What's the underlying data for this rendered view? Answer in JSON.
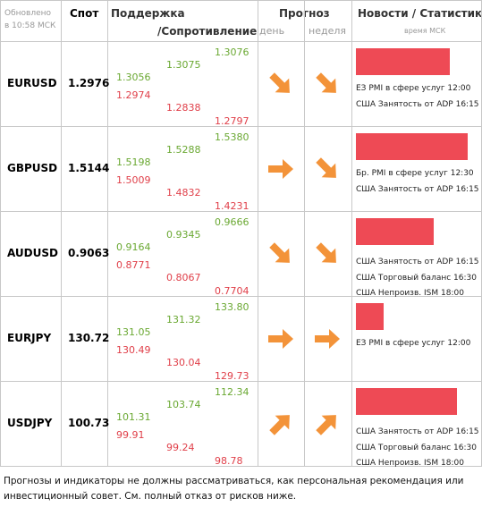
{
  "header": {
    "updated": [
      "Обновлено",
      "в 10:58 МСК"
    ],
    "spot": "Спот",
    "support": "Поддержка",
    "resistance": "/Сопротивление",
    "forecast": "Прогноз",
    "day": "день",
    "week": "неделя",
    "news": "Новости / Статистика",
    "news_time": "время МСК"
  },
  "rows": [
    {
      "pair": "EURUSD",
      "spot": "1.2976",
      "levels": [
        [
          "1.3056",
          "1.2974"
        ],
        [
          "1.3075",
          "1.2838"
        ],
        [
          "1.3076",
          "1.2797"
        ]
      ],
      "day": "down-right",
      "week": "down-right",
      "news_bar": 78,
      "news": [
        "ЕЗ PMI в сфере услуг 12:00",
        "США Занятость от ADP 16:15"
      ]
    },
    {
      "pair": "GBPUSD",
      "spot": "1.5144",
      "levels": [
        [
          "1.5198",
          "1.5009"
        ],
        [
          "1.5288",
          "1.4832"
        ],
        [
          "1.5380",
          "1.4231"
        ]
      ],
      "day": "right",
      "week": "down-right",
      "news_bar": 93,
      "news": [
        "Бр. PMI в сфере услуг 12:30",
        "США Занятость от ADP 16:15"
      ]
    },
    {
      "pair": "AUDUSD",
      "spot": "0.9063",
      "levels": [
        [
          "0.9164",
          "0.8771"
        ],
        [
          "0.9345",
          "0.8067"
        ],
        [
          "0.9666",
          "0.7704"
        ]
      ],
      "day": "down-right",
      "week": "down-right",
      "news_bar": 65,
      "news": [
        "США Занятость от ADP 16:15",
        "США Торговый баланс 16:30",
        "США Непроизв. ISM 18:00"
      ]
    },
    {
      "pair": "EURJPY",
      "spot": "130.72",
      "levels": [
        [
          "131.05",
          "130.49"
        ],
        [
          "131.32",
          "130.04"
        ],
        [
          "133.80",
          "129.73"
        ]
      ],
      "day": "right",
      "week": "right",
      "news_bar": 23,
      "news": [
        "ЕЗ PMI в сфере услуг 12:00"
      ]
    },
    {
      "pair": "USDJPY",
      "spot": "100.73",
      "levels": [
        [
          "101.31",
          "99.91"
        ],
        [
          "103.74",
          "99.24"
        ],
        [
          "112.34",
          "98.78"
        ]
      ],
      "day": "up-right",
      "week": "up-right",
      "news_bar": 84,
      "news": [
        "США Занятость от ADP 16:15",
        "США Торговый баланс 16:30",
        "США Непроизв. ISM 18:00"
      ]
    }
  ],
  "footer": [
    "Прогнозы и индикаторы не должны рассматриваться, как персональная рекомендация или",
    "инвестиционный совет. См. полный отказ от рисков ниже."
  ]
}
